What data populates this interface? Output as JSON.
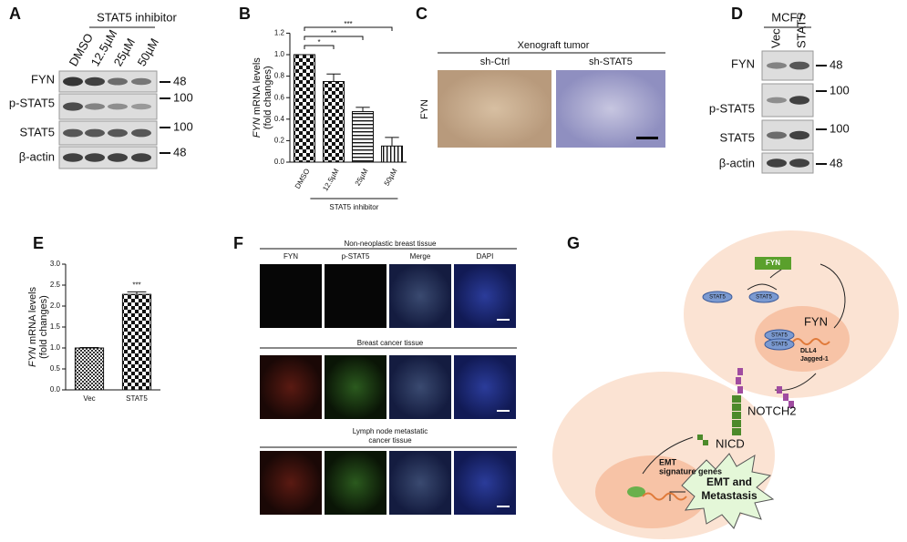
{
  "panel_letters": [
    "A",
    "B",
    "C",
    "D",
    "E",
    "F",
    "G"
  ],
  "blot_A": {
    "treatment": "STAT5 inhibitor",
    "lanes": [
      "DMSO",
      "12.5µM",
      "25µM",
      "50µM"
    ],
    "rows": [
      "FYN",
      "p-STAT5",
      "STAT5",
      "β-actin"
    ],
    "markers": [
      "48",
      "100",
      "100",
      "48"
    ]
  },
  "chart_data": [
    {
      "type": "bar",
      "categories": [
        "DMSO",
        "12.5µM",
        "25µM",
        "50µM"
      ],
      "values": [
        1.0,
        0.75,
        0.47,
        0.15
      ],
      "errors": [
        0,
        0.07,
        0.04,
        0.08
      ],
      "patterns": [
        "checker",
        "checker",
        "hlines",
        "vlines"
      ],
      "ylabel_gene": "FYN",
      "ylabel": "mRNA levels",
      "ylabel_unit": "(fold changes)",
      "group_label": "STAT5 inhibitor",
      "annotations": [
        "*",
        "**",
        "***"
      ],
      "ylim": [
        0,
        1.2
      ],
      "yticks": [
        {
          "value": 0,
          "label": "0.0"
        },
        0.2,
        0.4,
        0.6,
        0.8,
        {
          "value": 1,
          "label": "1.0"
        },
        1.2
      ]
    },
    {
      "type": "bar",
      "categories": [
        "Vec",
        "STAT5"
      ],
      "values": [
        1.0,
        2.28
      ],
      "errors": [
        0.01,
        0.06
      ],
      "patterns": [
        "checker-small",
        "checker"
      ],
      "ylabel_gene": "FYN",
      "ylabel": "mRNA levels",
      "ylabel_unit": "(fold changes)",
      "annotations": [
        "***"
      ],
      "ylim": [
        0,
        3.0
      ],
      "yticks": [
        {
          "value": 0,
          "label": "0.0"
        },
        0.5,
        {
          "value": 1,
          "label": "1.0"
        },
        1.5,
        {
          "value": 2,
          "label": "2.0"
        },
        2.5,
        {
          "value": 3,
          "label": "3.0"
        }
      ]
    }
  ],
  "xenograft_C": {
    "title": "Xenograft tumor",
    "groups": [
      "sh-Ctrl",
      "sh-STAT5"
    ],
    "stain": "FYN"
  },
  "blot_D": {
    "cell_line": "MCF7",
    "lanes": [
      "Vec",
      "STAT5"
    ],
    "rows": [
      "FYN",
      "p-STAT5",
      "STAT5",
      "β-actin"
    ],
    "markers": [
      "48",
      "100",
      "100",
      "48"
    ]
  },
  "panel_F": {
    "columns": [
      "FYN",
      "p-STAT5",
      "Merge",
      "DAPI"
    ],
    "tissues": [
      [
        "Non-neoplastic breast tissue"
      ],
      [
        "Breast cancer tissue"
      ],
      [
        "Lymph node metastatic",
        "cancer tissue"
      ]
    ]
  },
  "model_G": {
    "fyn_box": "FYN",
    "stat5": [
      "STAT5",
      "STAT5",
      "STAT5",
      "STAT5"
    ],
    "fyn": "FYN",
    "targets": [
      "DLL4",
      "Jagged-1"
    ],
    "receptor": "NOTCH2",
    "nicd": "NICD",
    "genes": [
      "EMT",
      "signature genes"
    ],
    "outcome": [
      "EMT and",
      "Metastasis"
    ]
  }
}
